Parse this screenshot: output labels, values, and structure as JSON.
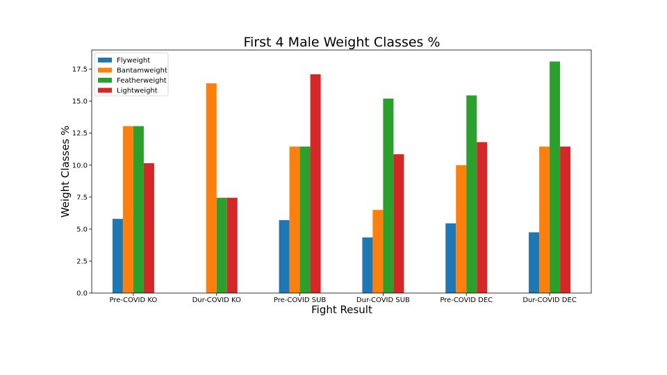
{
  "chart_data": {
    "type": "bar",
    "title": "First 4 Male Weight Classes %",
    "xlabel": "Fight Result",
    "ylabel": "Weight Classes %",
    "categories": [
      "Pre-COVID KO",
      "Dur-COVID KO",
      "Pre-COVID SUB",
      "Dur-COVID SUB",
      "Pre-COVID DEC",
      "Dur-COVID DEC"
    ],
    "series": [
      {
        "name": "Flyweight",
        "color": "#1f77b4",
        "values": [
          5.8,
          0,
          5.7,
          4.35,
          5.45,
          4.75
        ]
      },
      {
        "name": "Bantamweight",
        "color": "#ff7f0e",
        "values": [
          13.05,
          16.4,
          11.45,
          6.5,
          10.0,
          11.45
        ]
      },
      {
        "name": "Featherweight",
        "color": "#2ca02c",
        "values": [
          13.05,
          7.45,
          11.45,
          15.2,
          15.45,
          18.1
        ]
      },
      {
        "name": "Lightweight",
        "color": "#d62728",
        "values": [
          10.15,
          7.45,
          17.1,
          10.85,
          11.8,
          11.45
        ]
      }
    ],
    "ylim": [
      0,
      19.0
    ],
    "yticks": [
      "0.0",
      "2.5",
      "5.0",
      "7.5",
      "10.0",
      "12.5",
      "15.0",
      "17.5"
    ],
    "legend_position": "top-left",
    "grid": false
  }
}
